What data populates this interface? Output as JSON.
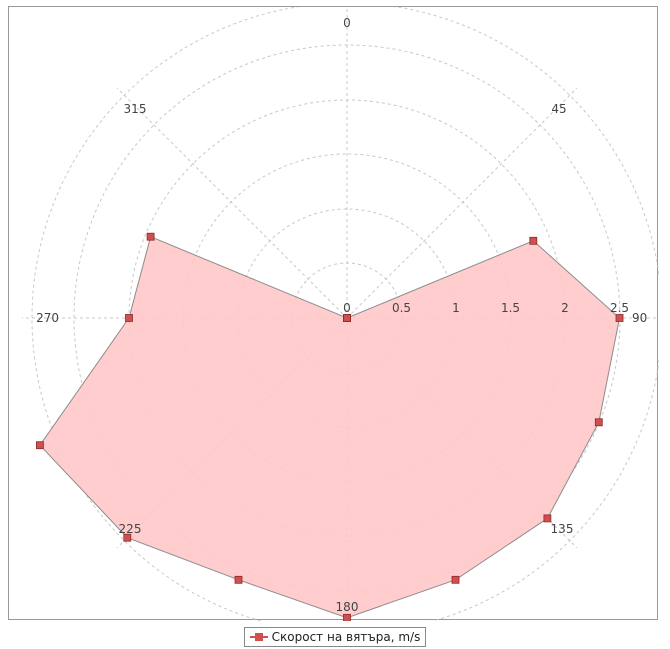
{
  "chart_data": {
    "type": "polar",
    "title": "",
    "angle_labels": [
      "0",
      "45",
      "90",
      "135",
      "180",
      "225",
      "270",
      "315"
    ],
    "radial_tick_labels": [
      "0",
      "0.5",
      "1",
      "1.5",
      "2",
      "2.5"
    ],
    "radial_range": [
      0,
      2.5
    ],
    "angular_direction": "clockwise",
    "zero_angle": "top",
    "grid": true,
    "legend_position": "bottom-center",
    "series": [
      {
        "name": "Скорост на вятъра, m/s",
        "color": "#d05050",
        "fill_color": "#ffc8c8",
        "points": [
          {
            "angle": 0,
            "r": 0
          },
          {
            "angle": 22.5,
            "r": 0
          },
          {
            "angle": 45,
            "r": 0
          },
          {
            "angle": 67.5,
            "r": 1.85
          },
          {
            "angle": 90,
            "r": 2.5
          },
          {
            "angle": 112.5,
            "r": 2.5
          },
          {
            "angle": 135,
            "r": 2.6
          },
          {
            "angle": 157.5,
            "r": 2.6
          },
          {
            "angle": 180,
            "r": 2.75
          },
          {
            "angle": 202.5,
            "r": 2.6
          },
          {
            "angle": 225,
            "r": 2.85
          },
          {
            "angle": 247.5,
            "r": 3.05
          },
          {
            "angle": 270,
            "r": 2.0
          },
          {
            "angle": 292.5,
            "r": 1.95
          },
          {
            "angle": 315,
            "r": 0
          },
          {
            "angle": 337.5,
            "r": 0
          }
        ]
      }
    ]
  }
}
